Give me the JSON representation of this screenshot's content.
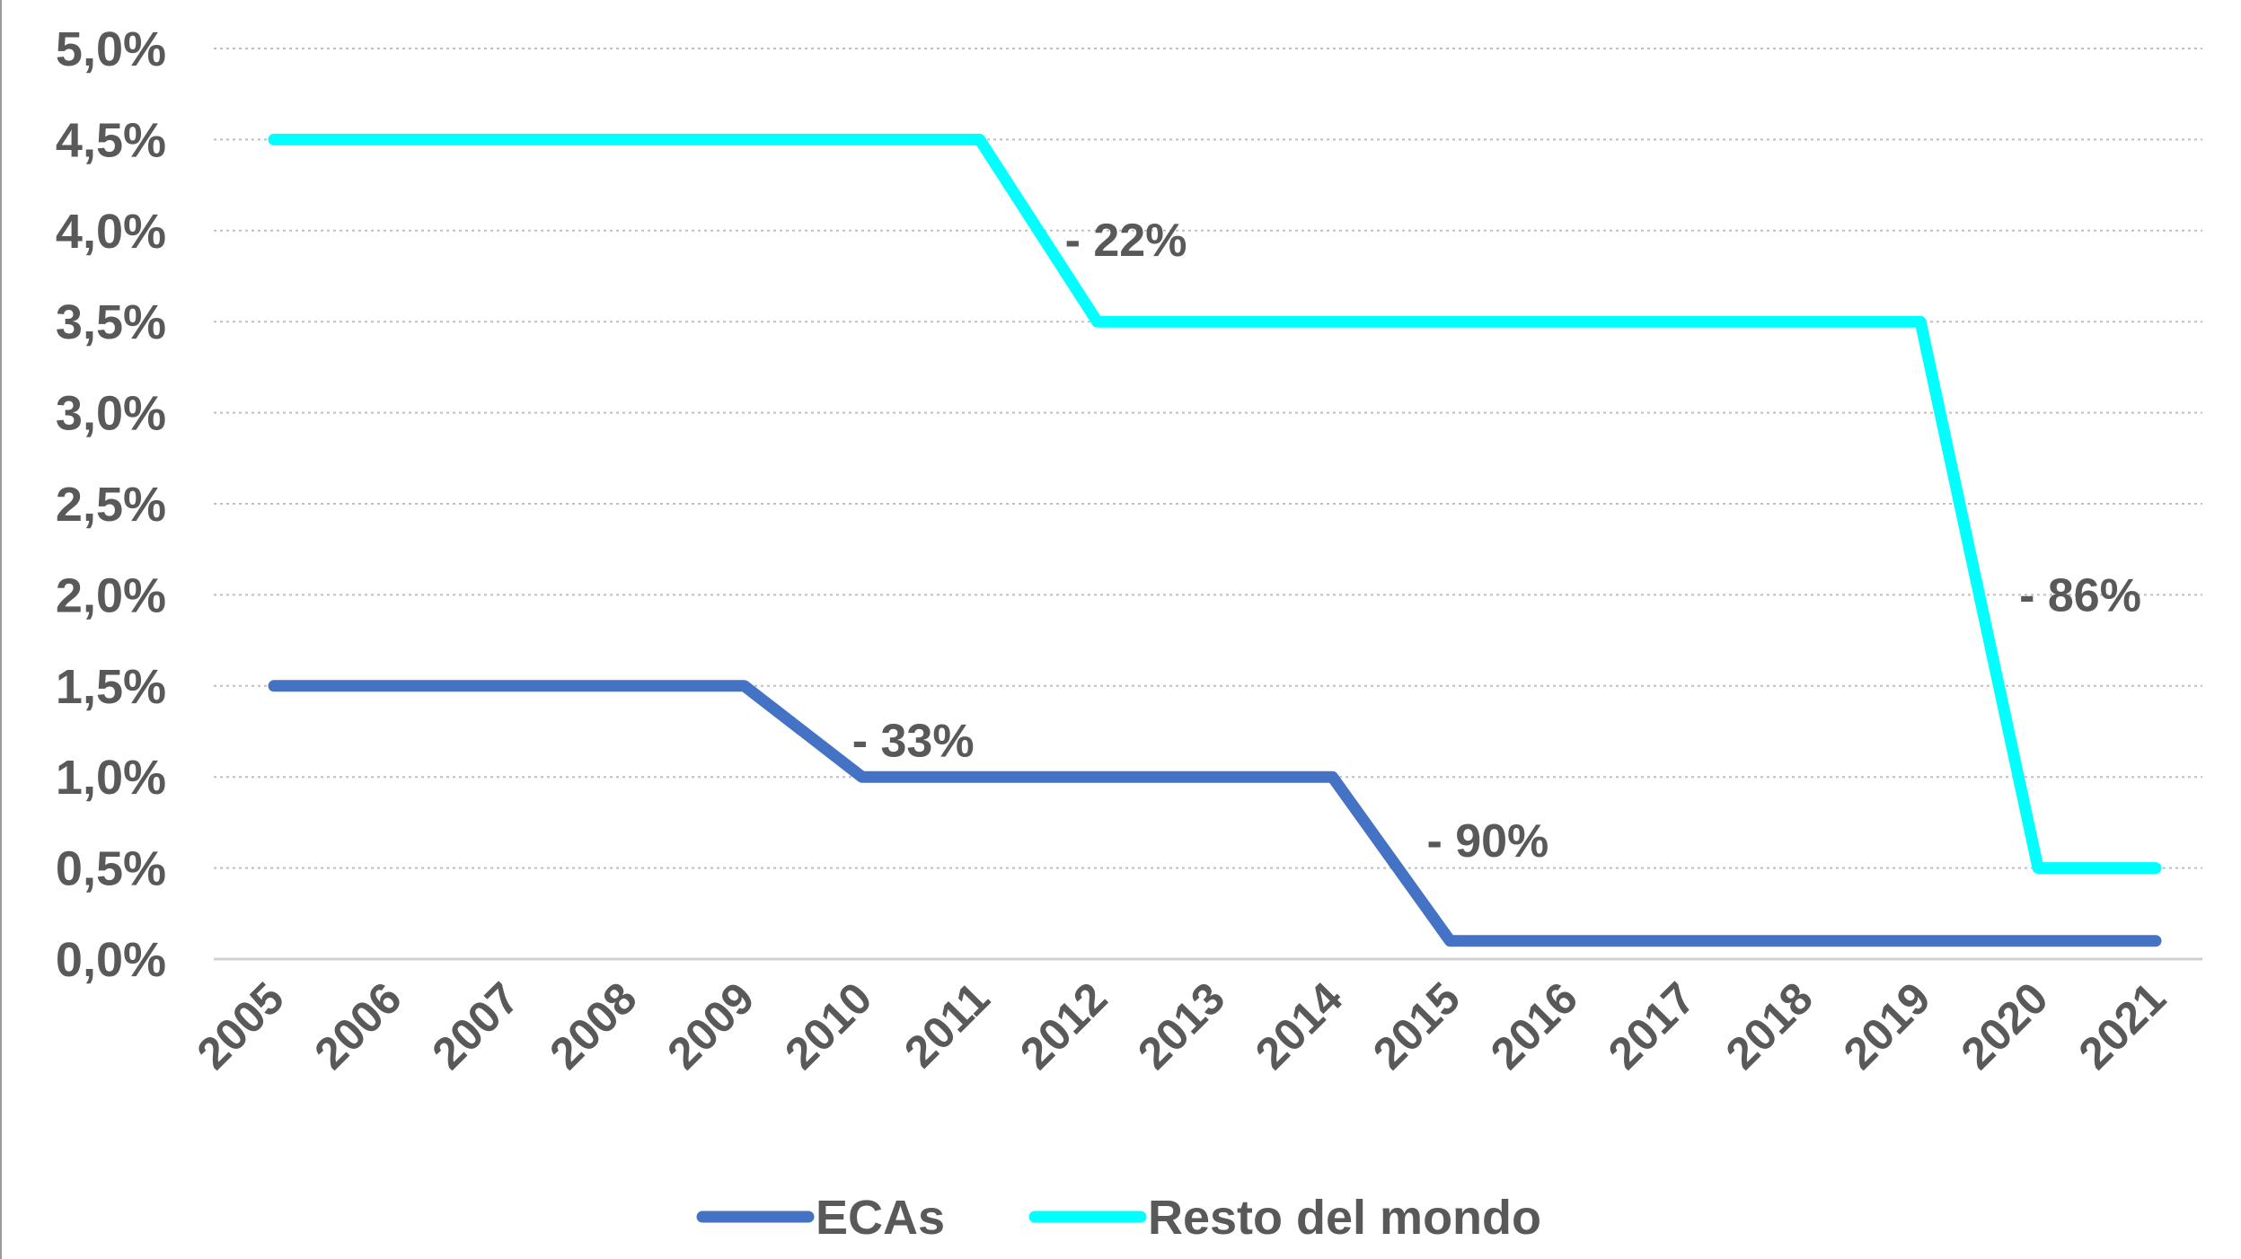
{
  "chart_data": {
    "type": "line",
    "x": [
      "2005",
      "2006",
      "2007",
      "2008",
      "2009",
      "2010",
      "2011",
      "2012",
      "2013",
      "2014",
      "2015",
      "2016",
      "2017",
      "2018",
      "2019",
      "2020",
      "2021"
    ],
    "ylim": [
      0,
      5.0
    ],
    "y_ticks": [
      "0,0%",
      "0,5%",
      "1,0%",
      "1,5%",
      "2,0%",
      "2,5%",
      "3,0%",
      "3,5%",
      "4,0%",
      "4,5%",
      "5,0%"
    ],
    "y_tick_values": [
      0,
      0.5,
      1.0,
      1.5,
      2.0,
      2.5,
      3.0,
      3.5,
      4.0,
      4.5,
      5.0
    ],
    "grid": true,
    "legend_position": "bottom",
    "series": [
      {
        "name": "ECAs",
        "color": "#4472C4",
        "values": [
          1.5,
          1.5,
          1.5,
          1.5,
          1.5,
          1.0,
          1.0,
          1.0,
          1.0,
          1.0,
          0.1,
          0.1,
          0.1,
          0.1,
          0.1,
          0.1,
          0.1
        ]
      },
      {
        "name": "Resto del mondo",
        "color": "#00FFFF",
        "values": [
          4.5,
          4.5,
          4.5,
          4.5,
          4.5,
          4.5,
          4.5,
          3.5,
          3.5,
          3.5,
          3.5,
          3.5,
          3.5,
          3.5,
          3.5,
          0.5,
          0.5
        ]
      }
    ],
    "annotations": [
      {
        "text": "- 22%",
        "x": "2011",
        "y": 3.95
      },
      {
        "text": "- 86%",
        "x": "2019",
        "y": 2.0
      },
      {
        "text": "- 33%",
        "x": "2009",
        "y": 1.2
      },
      {
        "text": "- 90%",
        "x": "2014",
        "y": 0.65
      }
    ]
  }
}
